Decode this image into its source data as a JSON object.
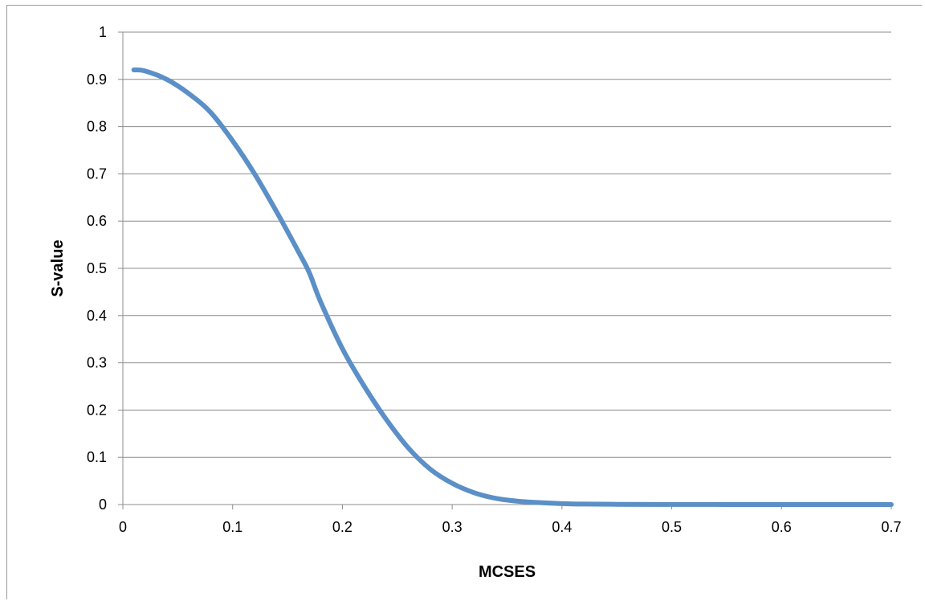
{
  "chart_data": {
    "type": "line",
    "title": "",
    "xlabel": "MCSES",
    "ylabel": "S-value",
    "xlim": [
      0,
      0.7
    ],
    "ylim": [
      0,
      1
    ],
    "x_ticks": [
      "0",
      "0.1",
      "0.2",
      "0.3",
      "0.4",
      "0.5",
      "0.6",
      "0.7"
    ],
    "y_ticks": [
      "0",
      "0.1",
      "0.2",
      "0.3",
      "0.4",
      "0.5",
      "0.6",
      "0.7",
      "0.8",
      "0.9",
      "1"
    ],
    "grid": true,
    "legend": "none",
    "series": [
      {
        "color": "#5b8fc7",
        "x": [
          0.01,
          0.02,
          0.04,
          0.06,
          0.08,
          0.1,
          0.12,
          0.14,
          0.16,
          0.17,
          0.18,
          0.2,
          0.22,
          0.24,
          0.26,
          0.28,
          0.3,
          0.32,
          0.34,
          0.36,
          0.38,
          0.4,
          0.42,
          0.45,
          0.5,
          0.55,
          0.6,
          0.65,
          0.7
        ],
        "y": [
          0.92,
          0.918,
          0.9,
          0.87,
          0.83,
          0.77,
          0.7,
          0.62,
          0.535,
          0.49,
          0.43,
          0.33,
          0.25,
          0.18,
          0.12,
          0.075,
          0.045,
          0.025,
          0.013,
          0.007,
          0.004,
          0.002,
          0.001,
          0.0005,
          0.0002,
          0.0001,
          0.0,
          0.0,
          0.0
        ]
      }
    ]
  }
}
